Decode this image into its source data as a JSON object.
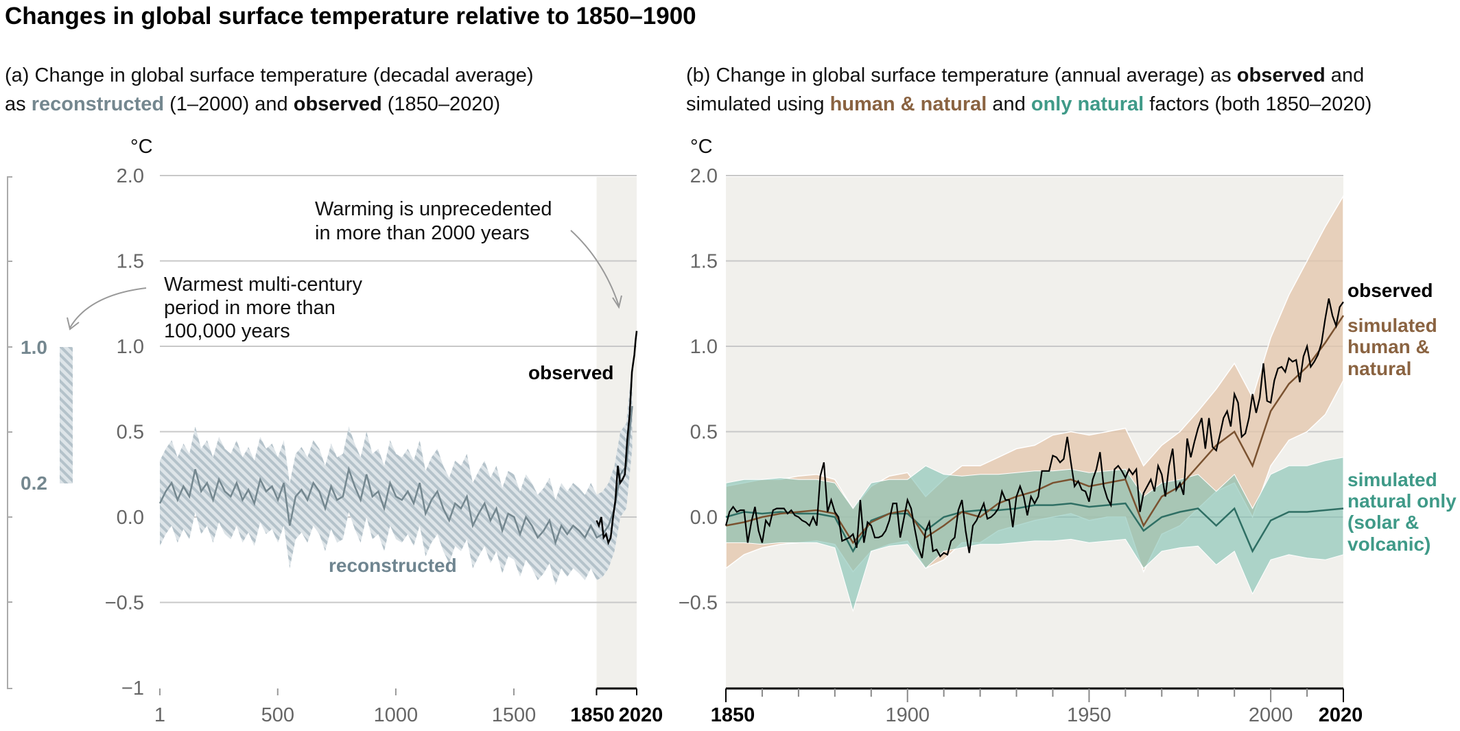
{
  "title": "Changes in global surface temperature relative to 1850–1900",
  "colors": {
    "reconstructed": "#74878f",
    "reconstructed_band": "#b4c2ca",
    "observed": "#000000",
    "human_natural": "#7a5230",
    "human_natural_label": "#8a6341",
    "human_natural_band": "#e3c6ab",
    "natural": "#2f6f64",
    "natural_label": "#3f9a88",
    "natural_band": "#7fbfb1",
    "shade": "#f1f0ec",
    "grid": "#c8c8c8"
  },
  "panel_a": {
    "subtitle_line1": "(a) Change in global surface temperature (decadal average)",
    "subtitle_line2_parts": [
      "as ",
      "reconstructed",
      " (1–2000) and ",
      "observed",
      " (1850–2020)"
    ],
    "unit": "°C",
    "annotation_warming": [
      "Warming is unprecedented",
      "in more than 2000 years"
    ],
    "annotation_warmest": [
      "Warmest multi-century",
      "period in more than",
      "100,000 years"
    ],
    "label_observed": "observed",
    "label_reconstructed": "reconstructed",
    "side_bar_labels": [
      "1.0",
      "0.2"
    ]
  },
  "panel_b": {
    "subtitle_line1_parts": [
      "(b) Change in global surface temperature (annual average) as ",
      "observed",
      " and"
    ],
    "subtitle_line2_parts": [
      "simulated using ",
      "human & natural",
      " and ",
      "only natural",
      " factors (both 1850–2020)"
    ],
    "unit": "°C",
    "label_observed": "observed",
    "label_human_natural": [
      "simulated",
      "human &",
      "natural"
    ],
    "label_natural": [
      "simulated",
      "natural only",
      "(solar &",
      "volcanic)"
    ]
  },
  "chart_data": [
    {
      "type": "line",
      "title": "(a) Change in global surface temperature (decadal average)",
      "ylabel": "°C",
      "ylim": [
        -1,
        2
      ],
      "xlim": [
        1,
        2020
      ],
      "yticks": [
        "2.0",
        "1.5",
        "1.0",
        "0.5",
        "0.0",
        "−0.5",
        "−1"
      ],
      "ytick_values": [
        2,
        1.5,
        1,
        0.5,
        0,
        -0.5,
        -1
      ],
      "xticks": [
        "1",
        "500",
        "1000",
        "1500",
        "1850",
        "2020"
      ],
      "xtick_values": [
        1,
        500,
        1000,
        1500,
        1850,
        2020
      ],
      "grid": true,
      "shaded_period": [
        1850,
        2020
      ],
      "side_bar_range": [
        0.2,
        1.0
      ],
      "series": [
        {
          "name": "reconstructed",
          "x_start": 1,
          "x_step": 25,
          "values": [
            0.08,
            0.15,
            0.2,
            0.1,
            0.18,
            0.12,
            0.28,
            0.15,
            0.2,
            0.1,
            0.22,
            0.15,
            0.12,
            0.2,
            0.1,
            0.16,
            0.08,
            0.22,
            0.15,
            0.18,
            0.1,
            0.2,
            -0.05,
            0.12,
            0.16,
            0.1,
            0.2,
            0.15,
            0.05,
            0.18,
            0.1,
            0.12,
            0.28,
            0.18,
            0.1,
            0.25,
            0.12,
            0.15,
            0.05,
            0.2,
            0.12,
            0.1,
            0.15,
            0.08,
            0.2,
            0.02,
            0.1,
            0.15,
            0.05,
            -0.02,
            0.08,
            0.05,
            0.12,
            -0.05,
            0.02,
            0.08,
            -0.02,
            0.05,
            -0.08,
            0.02,
            0.0,
            -0.1,
            0.0,
            -0.05,
            -0.12,
            -0.08,
            -0.02,
            -0.15,
            -0.05,
            -0.1,
            -0.05,
            -0.08,
            -0.12,
            -0.05,
            -0.12,
            -0.1,
            -0.05,
            0.05,
            0.25,
            0.3,
            0.65
          ],
          "band_halfwidth": 0.25
        },
        {
          "name": "observed",
          "x": [
            1850,
            1860,
            1870,
            1880,
            1890,
            1900,
            1910,
            1920,
            1930,
            1940,
            1950,
            1960,
            1970,
            1980,
            1990,
            2000,
            2005,
            2010,
            2015,
            2020
          ],
          "values": [
            -0.02,
            -0.05,
            0.0,
            -0.12,
            -0.1,
            -0.15,
            -0.12,
            0.0,
            0.1,
            0.3,
            0.2,
            0.22,
            0.25,
            0.45,
            0.6,
            0.85,
            0.9,
            0.95,
            1.03,
            1.09
          ]
        }
      ]
    },
    {
      "type": "line",
      "title": "(b) Change in global surface temperature (annual average)",
      "ylabel": "°C",
      "ylim": [
        -1,
        2
      ],
      "xlim": [
        1850,
        2020
      ],
      "yticks": [
        "2.0",
        "1.5",
        "1.0",
        "0.5",
        "0.0",
        "−0.5"
      ],
      "ytick_values": [
        2,
        1.5,
        1,
        0.5,
        0,
        -0.5
      ],
      "xticks": [
        "1850",
        "1900",
        "1950",
        "2000",
        "2020"
      ],
      "xtick_values": [
        1850,
        1900,
        1950,
        2000,
        2020
      ],
      "grid": true,
      "series": [
        {
          "name": "observed",
          "x_start": 1850,
          "x_step": 1,
          "values": [
            -0.05,
            0.03,
            0.06,
            0.03,
            0.04,
            0.04,
            -0.15,
            -0.03,
            0.06,
            -0.08,
            -0.15,
            -0.02,
            -0.05,
            0.04,
            0.05,
            0.05,
            0.05,
            0.02,
            0.04,
            0.01,
            0.0,
            -0.02,
            -0.03,
            -0.05,
            0.0,
            -0.05,
            0.24,
            0.32,
            0.03,
            0.1,
            0.03,
            0.0,
            -0.14,
            -0.13,
            -0.12,
            -0.1,
            -0.18,
            0.1,
            -0.15,
            -0.03,
            -0.05,
            -0.12,
            -0.12,
            -0.11,
            -0.08,
            -0.02,
            0.08,
            0.08,
            -0.12,
            -0.01,
            0.1,
            0.05,
            -0.07,
            -0.18,
            -0.24,
            -0.08,
            -0.03,
            -0.2,
            -0.19,
            -0.23,
            -0.21,
            -0.22,
            -0.14,
            -0.12,
            0.04,
            0.1,
            -0.08,
            -0.21,
            -0.05,
            -0.02,
            0.03,
            0.08,
            -0.01,
            0.0,
            0.02,
            0.05,
            0.15,
            0.1,
            0.1,
            -0.06,
            0.12,
            0.18,
            0.12,
            0.01,
            0.12,
            0.08,
            0.12,
            0.27,
            0.27,
            0.27,
            0.36,
            0.35,
            0.32,
            0.34,
            0.47,
            0.32,
            0.18,
            0.21,
            0.16,
            0.15,
            0.09,
            0.22,
            0.28,
            0.38,
            0.18,
            0.11,
            0.07,
            0.28,
            0.3,
            0.27,
            0.23,
            0.28,
            0.25,
            0.28,
            0.03,
            0.14,
            0.18,
            0.22,
            0.15,
            0.3,
            0.25,
            0.12,
            0.3,
            0.4,
            0.16,
            0.2,
            0.13,
            0.46,
            0.35,
            0.44,
            0.52,
            0.58,
            0.4,
            0.58,
            0.41,
            0.39,
            0.48,
            0.58,
            0.62,
            0.53,
            0.72,
            0.67,
            0.47,
            0.49,
            0.58,
            0.72,
            0.61,
            0.7,
            0.9,
            0.68,
            0.67,
            0.8,
            0.87,
            0.88,
            0.85,
            0.93,
            0.91,
            0.92,
            0.79,
            0.94,
            1.0,
            0.88,
            0.91,
            0.95,
            1.02,
            1.16,
            1.28,
            1.18,
            1.12,
            1.23,
            1.26
          ]
        },
        {
          "name": "simulated human & natural",
          "x_start": 1850,
          "x_step": 5,
          "values": [
            -0.05,
            -0.03,
            0.0,
            0.02,
            0.03,
            0.04,
            0.02,
            -0.15,
            -0.03,
            0.02,
            0.04,
            -0.12,
            -0.05,
            0.03,
            0.0,
            0.08,
            0.12,
            0.15,
            0.2,
            0.22,
            0.18,
            0.2,
            0.22,
            -0.05,
            0.12,
            0.18,
            0.3,
            0.42,
            0.5,
            0.3,
            0.62,
            0.78,
            0.88,
            1.02,
            1.18
          ],
          "lower": [
            -0.3,
            -0.22,
            -0.18,
            -0.16,
            -0.15,
            -0.14,
            -0.16,
            -0.32,
            -0.2,
            -0.16,
            -0.14,
            -0.3,
            -0.25,
            -0.15,
            -0.15,
            -0.08,
            -0.05,
            -0.02,
            0.0,
            0.02,
            -0.02,
            0.0,
            0.0,
            -0.32,
            -0.1,
            -0.05,
            0.05,
            0.15,
            0.2,
            0.0,
            0.3,
            0.45,
            0.5,
            0.6,
            0.8
          ],
          "upper": [
            0.18,
            0.2,
            0.22,
            0.22,
            0.24,
            0.25,
            0.22,
            0.05,
            0.18,
            0.24,
            0.26,
            0.12,
            0.22,
            0.3,
            0.3,
            0.35,
            0.4,
            0.42,
            0.48,
            0.5,
            0.48,
            0.5,
            0.52,
            0.3,
            0.42,
            0.5,
            0.62,
            0.75,
            0.9,
            0.7,
            1.05,
            1.3,
            1.5,
            1.7,
            1.88
          ]
        },
        {
          "name": "simulated natural only (solar & volcanic)",
          "x_start": 1850,
          "x_step": 5,
          "values": [
            0.0,
            0.03,
            0.02,
            0.03,
            0.02,
            0.02,
            0.0,
            -0.2,
            -0.02,
            0.02,
            0.02,
            -0.08,
            0.0,
            0.03,
            0.04,
            0.04,
            0.05,
            0.07,
            0.07,
            0.08,
            0.06,
            0.07,
            0.08,
            -0.08,
            0.0,
            0.03,
            0.05,
            -0.05,
            0.05,
            -0.2,
            -0.02,
            0.03,
            0.03,
            0.04,
            0.05
          ],
          "lower": [
            -0.15,
            -0.15,
            -0.16,
            -0.15,
            -0.15,
            -0.15,
            -0.18,
            -0.55,
            -0.2,
            -0.17,
            -0.16,
            -0.3,
            -0.2,
            -0.18,
            -0.16,
            -0.16,
            -0.15,
            -0.14,
            -0.14,
            -0.13,
            -0.15,
            -0.14,
            -0.13,
            -0.3,
            -0.2,
            -0.18,
            -0.17,
            -0.28,
            -0.2,
            -0.45,
            -0.25,
            -0.22,
            -0.24,
            -0.25,
            -0.22
          ],
          "upper": [
            0.2,
            0.22,
            0.22,
            0.23,
            0.22,
            0.22,
            0.2,
            0.05,
            0.2,
            0.22,
            0.22,
            0.3,
            0.25,
            0.24,
            0.25,
            0.25,
            0.26,
            0.27,
            0.27,
            0.28,
            0.26,
            0.27,
            0.28,
            0.12,
            0.2,
            0.22,
            0.25,
            0.15,
            0.25,
            0.05,
            0.25,
            0.3,
            0.3,
            0.33,
            0.35
          ]
        }
      ]
    }
  ]
}
